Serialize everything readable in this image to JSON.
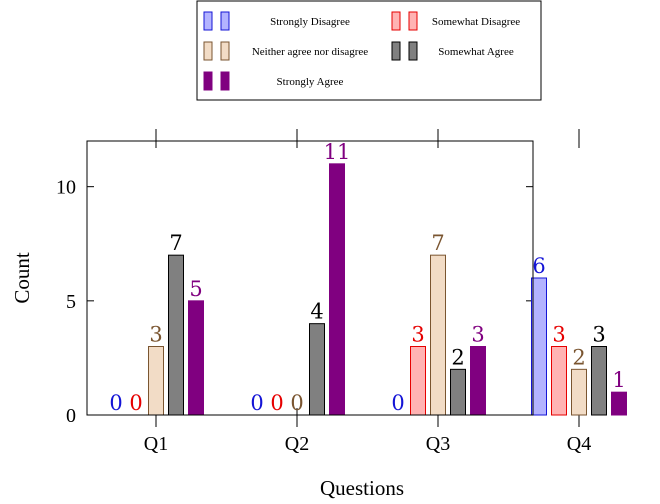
{
  "chart_data": {
    "type": "bar",
    "title": "",
    "xlabel": "Questions",
    "ylabel": "Count",
    "categories": [
      "Q1",
      "Q2",
      "Q3",
      "Q4"
    ],
    "ylim": [
      0,
      12
    ],
    "yticks": [
      0,
      5,
      10
    ],
    "grid": false,
    "legend_position": "top",
    "series": [
      {
        "name": "Strongly Disagree",
        "values": [
          0,
          0,
          0,
          6
        ],
        "fill": "#b3b3ff",
        "stroke": "#1414d6",
        "label_color": "#1414d6"
      },
      {
        "name": "Somewhat Disagree",
        "values": [
          0,
          0,
          3,
          3
        ],
        "fill": "#ffb3b3",
        "stroke": "#e60000",
        "label_color": "#e60000"
      },
      {
        "name": "Neither agree nor disagree",
        "values": [
          3,
          0,
          7,
          2
        ],
        "fill": "#f2dcc6",
        "stroke": "#7a5530",
        "label_color": "#7a5530"
      },
      {
        "name": "Somewhat Agree",
        "values": [
          7,
          4,
          2,
          3
        ],
        "fill": "#808080",
        "stroke": "#000000",
        "label_color": "#000000"
      },
      {
        "name": "Strongly Agree",
        "values": [
          5,
          11,
          3,
          1
        ],
        "fill": "#800080",
        "stroke": "#800080",
        "label_color": "#800080"
      }
    ]
  }
}
